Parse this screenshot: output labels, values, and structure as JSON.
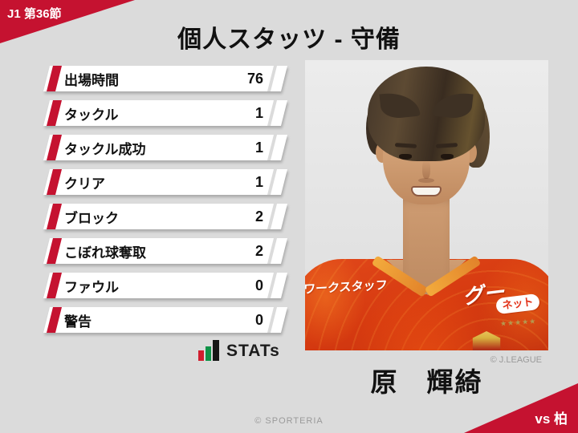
{
  "page": {
    "background": "#dbdbdb",
    "accent_red": "#c51230"
  },
  "header": {
    "round_badge": "J1 第36節",
    "title": "個人スタッツ - 守備"
  },
  "stats": {
    "rows": [
      {
        "label": "出場時間",
        "value": "76"
      },
      {
        "label": "タックル",
        "value": "1"
      },
      {
        "label": "タックル成功",
        "value": "1"
      },
      {
        "label": "クリア",
        "value": "1"
      },
      {
        "label": "ブロック",
        "value": "2"
      },
      {
        "label": "こぼれ球奪取",
        "value": "2"
      },
      {
        "label": "ファウル",
        "value": "0"
      },
      {
        "label": "警告",
        "value": "0"
      }
    ]
  },
  "stats_logo": {
    "wordmark": "STATs",
    "icon": "bar-chart-icon",
    "bar_red": "#d01e2e",
    "bar_green": "#0f9347",
    "bar_black": "#161616"
  },
  "photo": {
    "credit": "© J.LEAGUE",
    "jersey": {
      "sponsor_left": "ワークスタッフ",
      "sponsor_right_main": "グー",
      "sponsor_right_box": "ネット",
      "stars": "★★★★★"
    }
  },
  "player": {
    "name": "原　輝綺"
  },
  "footer": {
    "site_credit": "© SPORTERIA",
    "opponent": "vs 柏"
  }
}
